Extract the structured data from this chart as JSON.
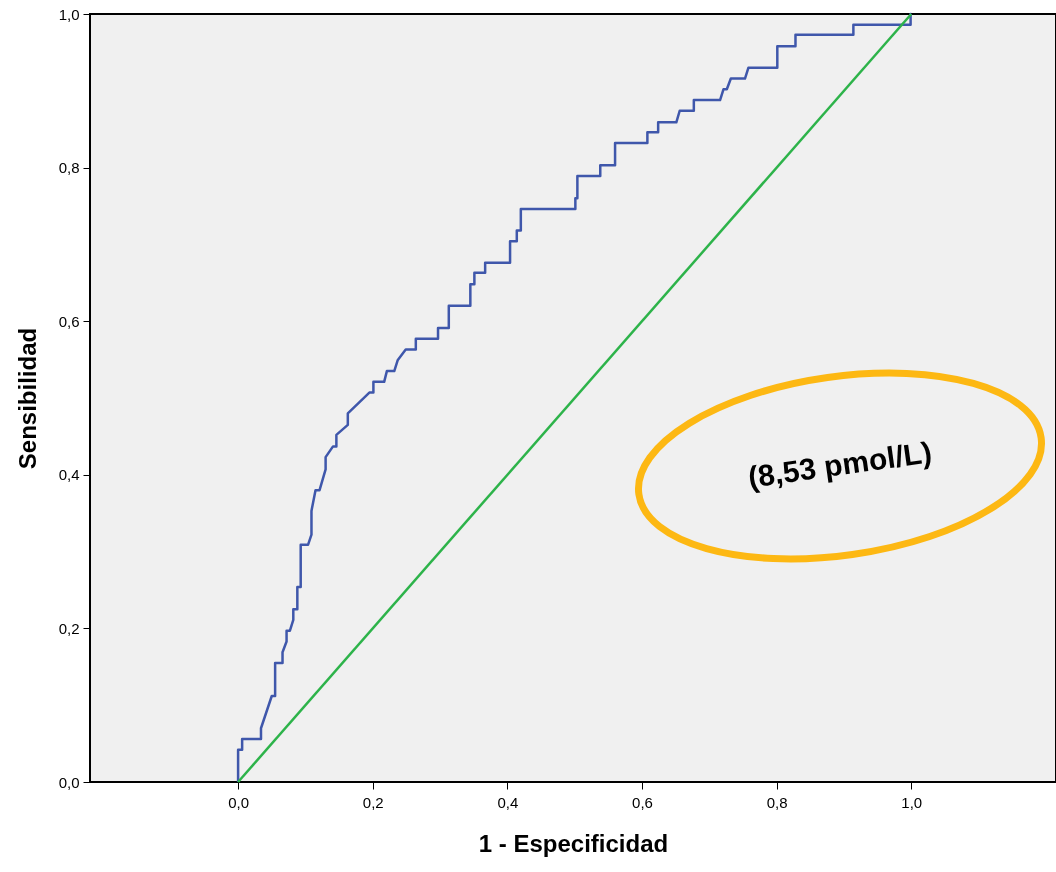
{
  "chart_data": {
    "type": "line",
    "xlabel": "1 - Especificidad",
    "ylabel": "Sensibilidad",
    "xlim": [
      -0.22,
      1.215
    ],
    "ylim": [
      0,
      1.0
    ],
    "xticks": [
      {
        "value": 0,
        "label": "0,0"
      },
      {
        "value": 0.2,
        "label": "0,2"
      },
      {
        "value": 0.4,
        "label": "0,4"
      },
      {
        "value": 0.6,
        "label": "0,6"
      },
      {
        "value": 0.8,
        "label": "0,8"
      },
      {
        "value": 1.0,
        "label": "1,0"
      }
    ],
    "yticks": [
      {
        "value": 0,
        "label": "0,0"
      },
      {
        "value": 0.2,
        "label": "0,2"
      },
      {
        "value": 0.4,
        "label": "0,4"
      },
      {
        "value": 0.6,
        "label": "0,6"
      },
      {
        "value": 0.8,
        "label": "0,8"
      },
      {
        "value": 1.0,
        "label": "1,0"
      }
    ],
    "grid": false,
    "marker": "none",
    "line_style": "solid",
    "annotations": [
      "(8,53 pmol/L)"
    ],
    "series": [
      {
        "color": "#3f57ab",
        "x": [
          0,
          0,
          0.006,
          0.006,
          0.034,
          0.034,
          0.05,
          0.055,
          0.055,
          0.066,
          0.066,
          0.072,
          0.072,
          0.077,
          0.082,
          0.082,
          0.088,
          0.088,
          0.093,
          0.093,
          0.104,
          0.109,
          0.109,
          0.115,
          0.121,
          0.13,
          0.13,
          0.141,
          0.146,
          0.146,
          0.163,
          0.163,
          0.195,
          0.201,
          0.201,
          0.217,
          0.221,
          0.232,
          0.237,
          0.249,
          0.264,
          0.264,
          0.297,
          0.297,
          0.313,
          0.313,
          0.345,
          0.345,
          0.351,
          0.351,
          0.367,
          0.367,
          0.404,
          0.404,
          0.414,
          0.414,
          0.42,
          0.42,
          0.501,
          0.501,
          0.504,
          0.504,
          0.538,
          0.538,
          0.56,
          0.56,
          0.608,
          0.608,
          0.624,
          0.624,
          0.651,
          0.656,
          0.677,
          0.677,
          0.716,
          0.721,
          0.726,
          0.732,
          0.753,
          0.758,
          0.801,
          0.801,
          0.828,
          0.828,
          0.914,
          0.914,
          0.999,
          0.999,
          1.0
        ],
        "values": [
          0,
          0.042,
          0.042,
          0.056,
          0.056,
          0.07,
          0.112,
          0.112,
          0.155,
          0.155,
          0.169,
          0.183,
          0.197,
          0.197,
          0.211,
          0.225,
          0.225,
          0.254,
          0.254,
          0.309,
          0.309,
          0.322,
          0.353,
          0.38,
          0.38,
          0.407,
          0.423,
          0.437,
          0.437,
          0.452,
          0.465,
          0.48,
          0.507,
          0.507,
          0.521,
          0.521,
          0.535,
          0.535,
          0.549,
          0.563,
          0.563,
          0.577,
          0.577,
          0.591,
          0.591,
          0.62,
          0.62,
          0.648,
          0.648,
          0.663,
          0.663,
          0.676,
          0.676,
          0.704,
          0.704,
          0.718,
          0.718,
          0.746,
          0.746,
          0.76,
          0.76,
          0.789,
          0.789,
          0.803,
          0.803,
          0.832,
          0.832,
          0.846,
          0.846,
          0.859,
          0.859,
          0.874,
          0.874,
          0.888,
          0.888,
          0.902,
          0.902,
          0.916,
          0.916,
          0.93,
          0.93,
          0.958,
          0.958,
          0.973,
          0.973,
          0.986,
          0.986,
          1.0,
          1.0
        ]
      },
      {
        "color": "#2db34a",
        "x": [
          0,
          1.0
        ],
        "values": [
          0,
          1.0
        ]
      }
    ]
  }
}
